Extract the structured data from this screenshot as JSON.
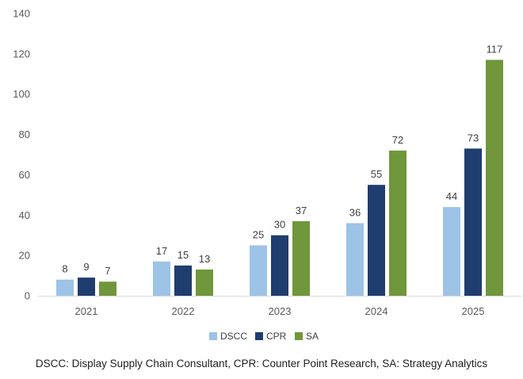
{
  "chart_data": {
    "type": "bar",
    "categories": [
      "2021",
      "2022",
      "2023",
      "2024",
      "2025"
    ],
    "series": [
      {
        "name": "DSCC",
        "color": "#9dc3e6",
        "values": [
          8,
          17,
          25,
          36,
          44
        ]
      },
      {
        "name": "CPR",
        "color": "#1f3d6e",
        "values": [
          9,
          15,
          30,
          55,
          73
        ]
      },
      {
        "name": "SA",
        "color": "#70973b",
        "values": [
          7,
          13,
          37,
          72,
          117
        ]
      }
    ],
    "ylim": [
      0,
      140
    ],
    "yticks": [
      0,
      20,
      40,
      60,
      80,
      100,
      120,
      140
    ],
    "grid": false,
    "legend_position": "bottom",
    "data_labels": true
  },
  "caption": "DSCC: Display Supply Chain Consultant, CPR: Counter Point Research, SA: Strategy Analytics"
}
